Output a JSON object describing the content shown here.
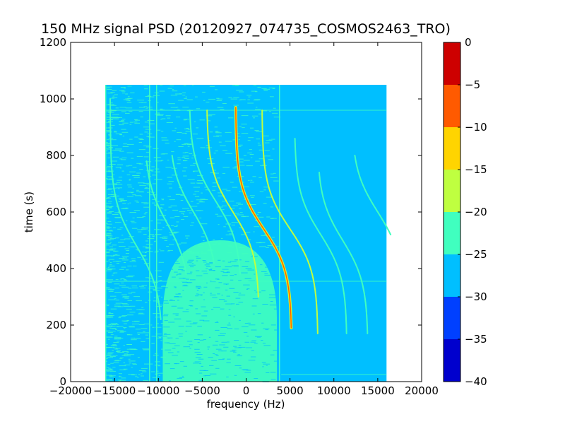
{
  "chart_data": {
    "type": "heatmap",
    "title": "150 MHz signal PSD (20120927_074735_COSMOS2463_TRO)",
    "xlabel": "frequency (Hz)",
    "ylabel": "time (s)",
    "xlim": [
      -20000,
      20000
    ],
    "ylim": [
      0,
      1200
    ],
    "x_ticks": [
      -20000,
      -15000,
      -10000,
      -5000,
      0,
      5000,
      10000,
      15000,
      20000
    ],
    "x_tick_labels": [
      "−20000",
      "−15000",
      "−10000",
      "−5000",
      "0",
      "5000",
      "10000",
      "15000",
      "20000"
    ],
    "y_ticks": [
      0,
      200,
      400,
      600,
      800,
      1000,
      1200
    ],
    "y_tick_labels": [
      "0",
      "200",
      "400",
      "600",
      "800",
      "1000",
      "1200"
    ],
    "data_extent": {
      "freq": [
        -16000,
        16000
      ],
      "time": [
        0,
        1050
      ]
    },
    "background_level": -27.5,
    "grid": false,
    "colorbar": {
      "levels": [
        -40,
        -35,
        -30,
        -25,
        -20,
        -15,
        -10,
        -5,
        0
      ],
      "tick_labels": [
        "−40",
        "−35",
        "−30",
        "−25",
        "−20",
        "−15",
        "−10",
        "−5",
        "0"
      ],
      "colors": [
        "#0000cd",
        "#0040ff",
        "#00bfff",
        "#40ffbf",
        "#bfff40",
        "#ffd400",
        "#ff5a00",
        "#cd0000"
      ]
    },
    "noise_hump": {
      "center_freq": -3000,
      "freq_halfwidth": 6500,
      "time_top": 500,
      "level": -22.5
    },
    "signals": [
      {
        "name": "strongest",
        "offset": 2000,
        "a": 3200,
        "t0": 540,
        "tau": 150,
        "tstart": 190,
        "tend": 970,
        "level": -7.5
      },
      {
        "name": "trace-2",
        "offset": 5000,
        "a": 3200,
        "t0": 540,
        "tau": 150,
        "tstart": 170,
        "tend": 960,
        "level": -17.5
      },
      {
        "name": "trace-3",
        "offset": 8500,
        "a": 3000,
        "t0": 520,
        "tau": 150,
        "tstart": 170,
        "tend": 860,
        "level": -22.5
      },
      {
        "name": "trace-4",
        "offset": 11000,
        "a": 2900,
        "t0": 500,
        "tau": 150,
        "tstart": 170,
        "tend": 740,
        "level": -22.5
      },
      {
        "name": "trace-5",
        "offset": -1500,
        "a": 3000,
        "t0": 600,
        "tau": 150,
        "tstart": 300,
        "tend": 960,
        "level": -17.5
      },
      {
        "name": "trace-6",
        "offset": -3500,
        "a": 3000,
        "t0": 640,
        "tau": 150,
        "tstart": 380,
        "tend": 960,
        "level": -22.5
      },
      {
        "name": "trace-7",
        "offset": -6000,
        "a": 2800,
        "t0": 600,
        "tau": 150,
        "tstart": 420,
        "tend": 800,
        "level": -22.5
      },
      {
        "name": "trace-8",
        "offset": -9000,
        "a": 2600,
        "t0": 560,
        "tau": 150,
        "tstart": 380,
        "tend": 780,
        "level": -22.5
      },
      {
        "name": "trace-9",
        "offset": -12500,
        "a": 3000,
        "t0": 480,
        "tau": 160,
        "tstart": 220,
        "tend": 1000,
        "level": -22.5
      },
      {
        "name": "trace-10",
        "offset": 15000,
        "a": 3000,
        "t0": 600,
        "tau": 150,
        "tstart": 520,
        "tend": 800,
        "level": -22.5
      }
    ],
    "vertical_lines": [
      {
        "freq": -16000,
        "t0": 0,
        "t1": 1050,
        "level": -22.5
      },
      {
        "freq": -11000,
        "t0": 0,
        "t1": 1050,
        "level": -22.5
      },
      {
        "freq": -10200,
        "t0": 0,
        "t1": 1050,
        "level": -22.5
      },
      {
        "freq": 3800,
        "t0": 0,
        "t1": 1050,
        "level": -22.5
      }
    ],
    "horizontal_lines": [
      {
        "time": 960,
        "f0": -16000,
        "f1": 16000,
        "level": -22.5
      },
      {
        "time": 355,
        "f0": -16000,
        "f1": 16000,
        "level": -22.5
      },
      {
        "time": 25,
        "f0": 4000,
        "f1": 16000,
        "level": -22.5
      }
    ]
  }
}
